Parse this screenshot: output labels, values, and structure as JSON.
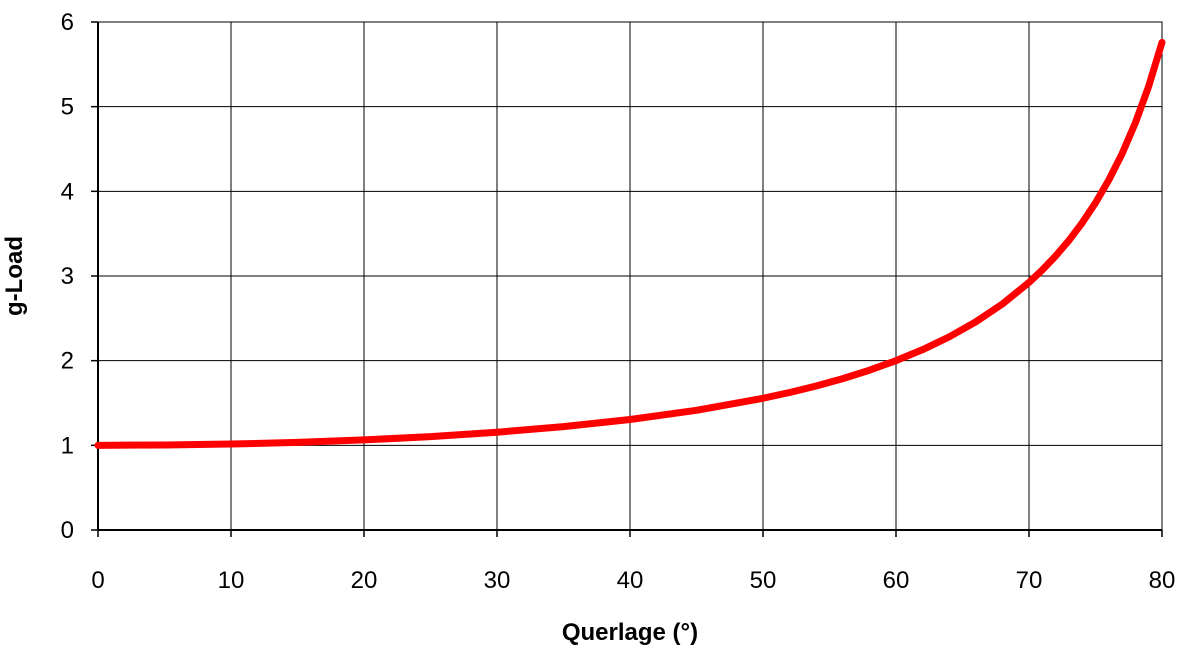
{
  "chart_data": {
    "type": "line",
    "xlabel": "Querlage (°)",
    "ylabel": "g-Load",
    "xlim": [
      0,
      80
    ],
    "ylim": [
      0,
      6
    ],
    "x_ticks": [
      "0",
      "10",
      "20",
      "30",
      "40",
      "50",
      "60",
      "70",
      "80"
    ],
    "y_ticks": [
      "0",
      "1",
      "2",
      "3",
      "4",
      "5",
      "6"
    ],
    "grid": true,
    "legend": "none",
    "series": [
      {
        "color": "#ff0000",
        "x": [
          0,
          5,
          10,
          15,
          20,
          25,
          30,
          35,
          40,
          45,
          50,
          52,
          54,
          56,
          58,
          60,
          62,
          64,
          66,
          68,
          70,
          71,
          72,
          73,
          74,
          75,
          76,
          77,
          78,
          79,
          80
        ],
        "y": [
          1.0,
          1.004,
          1.015,
          1.035,
          1.064,
          1.103,
          1.155,
          1.221,
          1.305,
          1.414,
          1.556,
          1.624,
          1.701,
          1.788,
          1.887,
          2.0,
          2.13,
          2.281,
          2.459,
          2.669,
          2.924,
          3.072,
          3.236,
          3.42,
          3.628,
          3.864,
          4.134,
          4.445,
          4.81,
          5.241,
          5.759
        ]
      }
    ]
  }
}
